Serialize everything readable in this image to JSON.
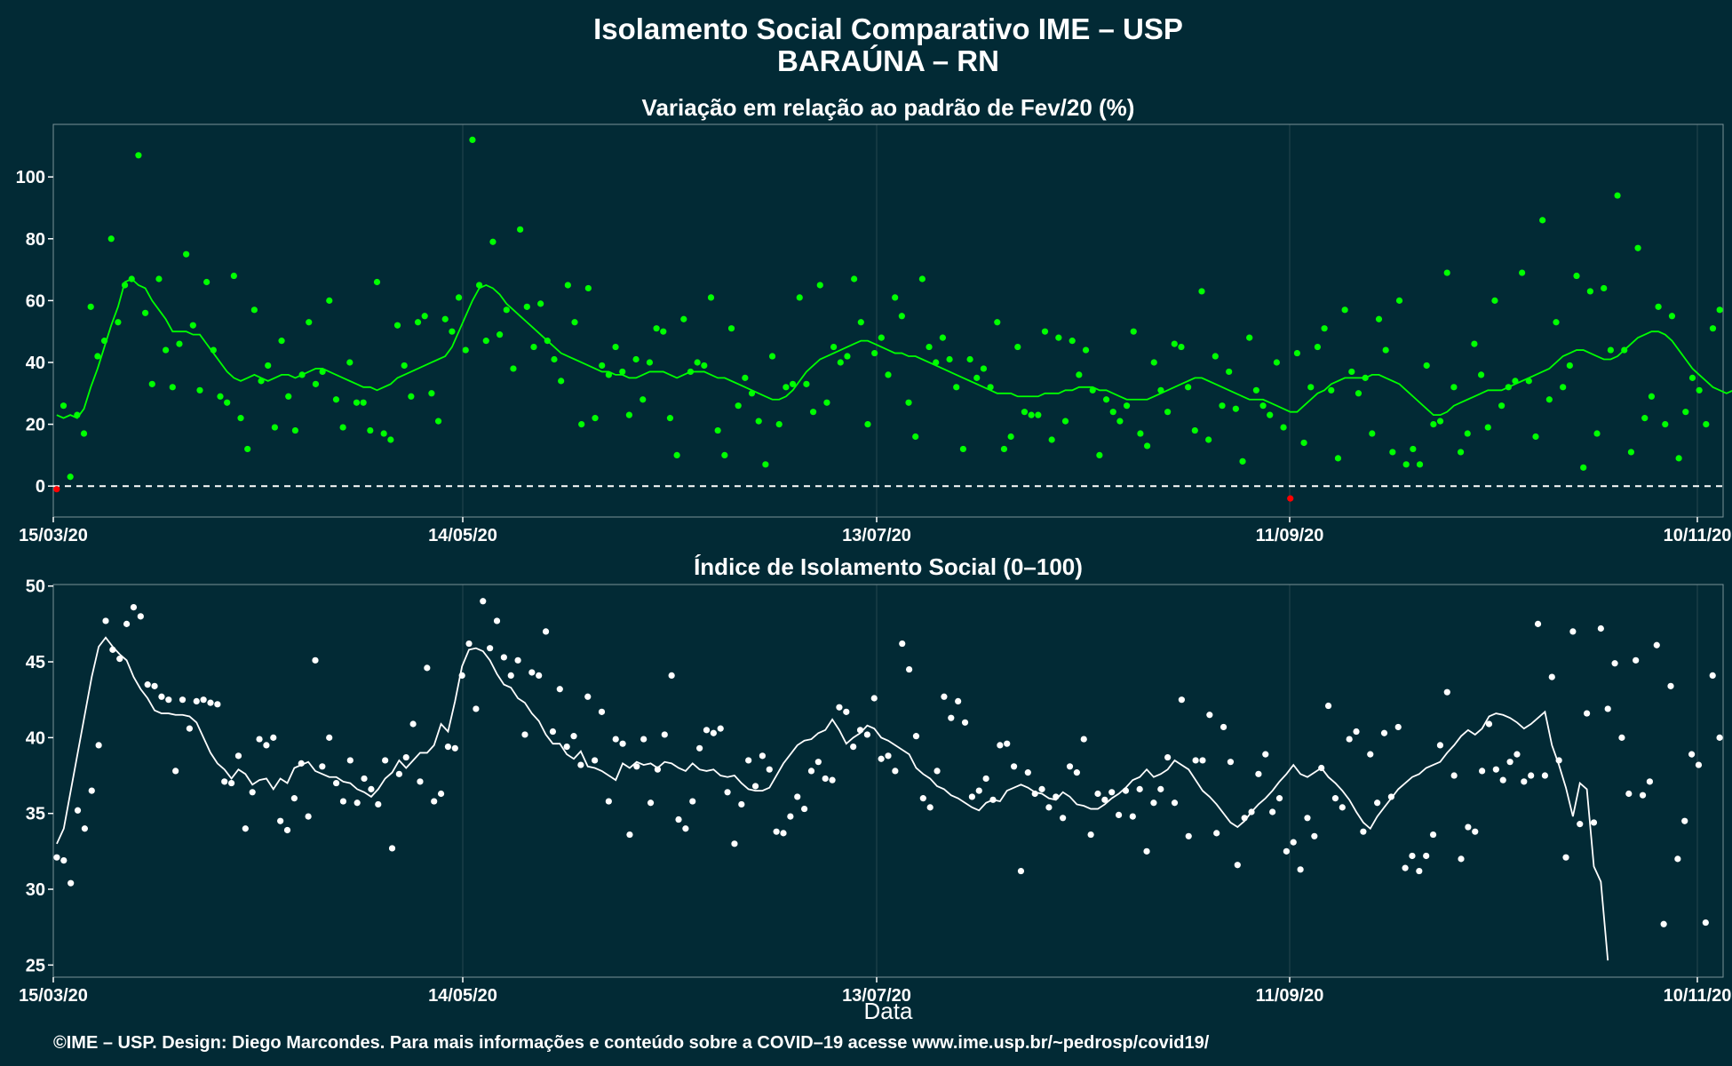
{
  "title_line1": "Isolamento Social Comparativo IME – USP",
  "title_line2": "BARAÚNA – RN",
  "xlabel": "Data",
  "footer": "©IME – USP. Design: Diego Marcondes. Para mais informações e conteúdo sobre a COVID–19 acesse www.ime.usp.br/~pedrosp/covid19/",
  "colors": {
    "background": "#022a35",
    "grid": "#26474f",
    "top_series": "#00ff00",
    "bottom_series": "#ffffff",
    "negative_points": "#ff0000",
    "zero_line": "#ffffff"
  },
  "chart_data": [
    {
      "type": "scatter",
      "title": "Variação em relação ao padrão de Fev/20 (%)",
      "x_ticks": [
        "15/03/20",
        "14/05/20",
        "13/07/20",
        "11/09/20",
        "10/11/20"
      ],
      "x_start": "15/03/20",
      "x_range": [
        "15/03/20",
        "16/11/20"
      ],
      "ylim": [
        -10,
        117
      ],
      "y_ticks": [
        0,
        20,
        40,
        60,
        80,
        100
      ],
      "reference_line": 0,
      "series": [
        {
          "style": "points",
          "values": [
            -1,
            26,
            3,
            23,
            17,
            58,
            42,
            47,
            80,
            53,
            65,
            67,
            107,
            56,
            33,
            67,
            44,
            32,
            46,
            75,
            52,
            31,
            66,
            44,
            29,
            27,
            68,
            22,
            12,
            57,
            34,
            39,
            19,
            47,
            29,
            18,
            36,
            53,
            33,
            37,
            60,
            28,
            19,
            40,
            27,
            27,
            18,
            66,
            17,
            15,
            52,
            39,
            29,
            53,
            55,
            30,
            21,
            54,
            50,
            61,
            44,
            112,
            65,
            47,
            79,
            49,
            57,
            38,
            83,
            58,
            45,
            59,
            47,
            41,
            34,
            65,
            53,
            20,
            64,
            22,
            39,
            36,
            45,
            37,
            23,
            41,
            28,
            40,
            51,
            50,
            22,
            10,
            54,
            37,
            40,
            39,
            61,
            18,
            10,
            51,
            26,
            35,
            30,
            21,
            7,
            42,
            20,
            32,
            33,
            61,
            33,
            24,
            65,
            27,
            45,
            40,
            42,
            67,
            53,
            20,
            43,
            48,
            36,
            61,
            55,
            27,
            16,
            67,
            45,
            40,
            48,
            41,
            32,
            12,
            41,
            35,
            38,
            32,
            53,
            12,
            16,
            45,
            24,
            23,
            23,
            50,
            15,
            48,
            21,
            47,
            36,
            44,
            31,
            10,
            28,
            24,
            21,
            26,
            50,
            17,
            13,
            40,
            31,
            24,
            46,
            45,
            32,
            18,
            63,
            15,
            42,
            26,
            37,
            25,
            8,
            48,
            31,
            26,
            23,
            40,
            19,
            -4,
            43,
            14,
            32,
            45,
            51,
            31,
            9,
            57,
            37,
            30,
            35,
            17,
            54,
            44,
            11,
            60,
            7,
            12,
            7,
            39,
            20,
            21,
            69,
            32,
            11,
            17,
            46,
            36,
            19,
            60,
            26,
            32,
            34,
            69,
            34,
            16,
            86,
            28,
            53,
            32,
            39,
            68,
            6,
            63,
            17,
            64,
            44,
            94,
            44,
            11,
            77,
            22,
            29,
            58,
            20,
            55,
            9,
            24,
            35,
            31,
            20,
            51,
            57
          ]
        },
        {
          "style": "line",
          "name": "",
          "values": [
            23,
            22,
            23,
            22,
            25,
            32,
            38,
            45,
            52,
            58,
            66,
            67,
            65,
            64,
            60,
            57,
            54,
            50,
            50,
            50,
            49,
            49,
            46,
            43,
            40,
            37,
            35,
            34,
            35,
            36,
            35,
            34,
            35,
            36,
            36,
            35,
            36,
            37,
            38,
            38,
            37,
            36,
            35,
            34,
            33,
            32,
            32,
            31,
            32,
            33,
            35,
            36,
            37,
            38,
            39,
            40,
            41,
            42,
            45,
            50,
            55,
            60,
            64,
            65,
            64,
            62,
            59,
            57,
            55,
            53,
            51,
            49,
            47,
            45,
            43,
            42,
            41,
            40,
            39,
            38,
            37,
            37,
            36,
            36,
            35,
            35,
            36,
            37,
            37,
            37,
            36,
            35,
            36,
            37,
            37,
            37,
            36,
            35,
            35,
            34,
            33,
            32,
            31,
            30,
            29,
            28,
            28,
            29,
            31,
            34,
            37,
            39,
            41,
            42,
            43,
            44,
            45,
            46,
            47,
            47,
            46,
            45,
            44,
            43,
            43,
            42,
            42,
            41,
            40,
            39,
            38,
            37,
            36,
            35,
            34,
            33,
            32,
            31,
            30,
            30,
            30,
            29,
            29,
            29,
            29,
            30,
            30,
            30,
            31,
            31,
            32,
            32,
            32,
            31,
            31,
            30,
            29,
            28,
            28,
            28,
            28,
            29,
            30,
            31,
            32,
            33,
            34,
            35,
            35,
            34,
            33,
            32,
            31,
            30,
            29,
            28,
            28,
            28,
            27,
            26,
            25,
            24,
            24,
            26,
            28,
            30,
            31,
            33,
            34,
            35,
            35,
            35,
            35,
            36,
            36,
            35,
            34,
            33,
            31,
            29,
            27,
            25,
            23,
            23,
            24,
            26,
            27,
            28,
            29,
            30,
            31,
            31,
            31,
            32,
            33,
            34,
            35,
            36,
            37,
            38,
            40,
            42,
            43,
            44,
            44,
            43,
            42,
            41,
            41,
            42,
            44,
            46,
            48,
            49,
            50,
            50,
            49,
            47,
            44,
            41,
            38,
            36,
            34,
            32,
            31,
            30,
            31,
            32,
            33
          ]
        }
      ],
      "negative_marker_indices": [
        0,
        181
      ]
    },
    {
      "type": "scatter",
      "title": "Índice de Isolamento Social (0–100)",
      "x_ticks": [
        "15/03/20",
        "14/05/20",
        "13/07/20",
        "11/09/20",
        "10/11/20"
      ],
      "x_range": [
        "15/03/20",
        "16/11/20"
      ],
      "ylim": [
        24.2,
        50.1
      ],
      "y_ticks": [
        25,
        30,
        35,
        40,
        45,
        50
      ],
      "series": [
        {
          "style": "points",
          "values": [
            32.1,
            31.9,
            30.4,
            35.2,
            34.0,
            36.5,
            39.5,
            47.7,
            45.8,
            45.2,
            47.5,
            48.6,
            48.0,
            43.5,
            43.4,
            42.7,
            42.5,
            37.8,
            42.5,
            40.6,
            42.4,
            42.5,
            42.3,
            42.2,
            37.1,
            37.0,
            38.8,
            34.0,
            36.4,
            39.9,
            39.5,
            40.0,
            34.5,
            33.9,
            36.0,
            38.3,
            34.8,
            45.1,
            38.1,
            40.0,
            37.0,
            35.8,
            38.5,
            35.7,
            37.3,
            36.6,
            35.6,
            38.5,
            32.7,
            37.6,
            38.7,
            40.9,
            37.1,
            44.6,
            35.8,
            36.3,
            39.4,
            39.3,
            44.1,
            46.2,
            41.9,
            49.0,
            45.9,
            47.7,
            45.3,
            44.1,
            45.1,
            40.2,
            44.3,
            44.1,
            47.0,
            40.4,
            43.2,
            39.4,
            40.1,
            38.2,
            42.7,
            38.5,
            41.7,
            35.8,
            39.9,
            39.6,
            33.6,
            38.1,
            39.9,
            35.7,
            37.9,
            40.2,
            44.1,
            34.6,
            34.0,
            35.8,
            39.3,
            40.5,
            40.3,
            40.6,
            36.4,
            33.0,
            35.6,
            38.5,
            36.8,
            38.8,
            37.9,
            33.8,
            33.7,
            34.8,
            36.1,
            35.3,
            37.8,
            38.4,
            37.3,
            37.2,
            42.0,
            41.7,
            39.4,
            40.5,
            40.2,
            42.6,
            38.6,
            38.8,
            37.8,
            46.2,
            44.5,
            40.1,
            36.0,
            35.4,
            37.8,
            42.7,
            41.3,
            42.4,
            41.0,
            36.1,
            36.5,
            37.3,
            35.9,
            39.5,
            39.6,
            38.1,
            31.2,
            37.7,
            36.3,
            36.6,
            35.4,
            36.1,
            34.7,
            38.1,
            37.7,
            39.9,
            33.6,
            36.3,
            35.9,
            36.4,
            34.9,
            36.5,
            34.8,
            36.6,
            32.5,
            35.7,
            36.6,
            38.7,
            35.7,
            42.5,
            33.5,
            38.5,
            38.5,
            41.5,
            33.7,
            40.7,
            38.4,
            31.6,
            34.7,
            35.1,
            37.6,
            38.9,
            35.1,
            36.0,
            32.5,
            33.1,
            31.3,
            34.7,
            33.5,
            38.0,
            42.1,
            36.0,
            35.4,
            39.9,
            40.4,
            33.8,
            38.9,
            35.7,
            40.3,
            36.1,
            40.7,
            31.4,
            32.2,
            31.2,
            32.2,
            33.6,
            39.5,
            43.0,
            37.5,
            32.0,
            34.1,
            33.8,
            37.8,
            40.9,
            37.9,
            37.2,
            38.4,
            38.9,
            37.1,
            37.5,
            47.5,
            37.5,
            44.0,
            38.5,
            32.1,
            47.0,
            34.3,
            41.6,
            34.4,
            47.2,
            41.9,
            44.9,
            40.0,
            36.3,
            45.1,
            36.2,
            37.1,
            46.1,
            27.7,
            43.4,
            32.0,
            34.5,
            38.9,
            38.2,
            27.8,
            44.1,
            40.0
          ]
        },
        {
          "style": "line",
          "name": "",
          "values": [
            33.0,
            34.0,
            36.5,
            39.0,
            41.5,
            44.0,
            46.0,
            46.6,
            46.0,
            45.5,
            45.1,
            44.0,
            43.2,
            42.6,
            41.8,
            41.6,
            41.6,
            41.5,
            41.5,
            41.4,
            41.0,
            40.0,
            39.0,
            38.3,
            37.9,
            37.3,
            37.9,
            37.6,
            36.9,
            37.2,
            37.3,
            36.6,
            37.3,
            37.0,
            38.0,
            38.2,
            38.4,
            37.8,
            37.6,
            37.4,
            37.4,
            37.1,
            37.0,
            36.6,
            36.4,
            36.1,
            36.6,
            37.3,
            37.7,
            38.5,
            38.0,
            38.5,
            39.0,
            39.0,
            39.5,
            40.9,
            40.4,
            42.4,
            44.7,
            45.8,
            45.9,
            45.7,
            45.1,
            44.2,
            43.5,
            43.3,
            42.6,
            42.3,
            41.6,
            41.1,
            40.2,
            39.6,
            39.6,
            38.9,
            38.6,
            39.1,
            38.1,
            38.0,
            37.8,
            37.5,
            37.2,
            38.3,
            38.0,
            38.4,
            38.2,
            38.3,
            38.0,
            38.4,
            38.3,
            38.0,
            37.8,
            38.3,
            37.9,
            37.8,
            37.9,
            37.5,
            37.4,
            37.5,
            37.0,
            36.6,
            36.5,
            36.5,
            36.7,
            37.5,
            38.3,
            38.9,
            39.5,
            39.8,
            39.9,
            40.3,
            40.5,
            41.2,
            40.5,
            39.6,
            40.0,
            40.3,
            40.8,
            40.6,
            40.0,
            39.8,
            39.5,
            39.2,
            38.9,
            38.0,
            37.6,
            37.3,
            36.8,
            36.6,
            36.2,
            36.0,
            35.7,
            35.4,
            35.2,
            35.7,
            35.9,
            35.8,
            36.5,
            36.7,
            36.9,
            36.7,
            36.4,
            36.3,
            36.0,
            35.9,
            36.4,
            36.1,
            35.6,
            35.5,
            35.3,
            35.3,
            35.6,
            36.0,
            36.3,
            36.7,
            37.2,
            37.4,
            37.9,
            37.4,
            37.6,
            37.9,
            38.5,
            38.2,
            37.9,
            37.2,
            36.5,
            36.1,
            35.6,
            35.0,
            34.4,
            34.1,
            34.5,
            35.1,
            35.6,
            36.0,
            36.5,
            37.1,
            37.6,
            38.2,
            37.6,
            37.4,
            37.7,
            38.0,
            37.4,
            37.0,
            36.5,
            35.9,
            35.1,
            34.4,
            34.0,
            34.8,
            35.4,
            36.0,
            36.6,
            37.0,
            37.4,
            37.6,
            38.0,
            38.2,
            38.4,
            39.0,
            39.5,
            40.1,
            40.5,
            40.2,
            40.6,
            41.4,
            41.6,
            41.5,
            41.3,
            41.0,
            40.6,
            40.9,
            41.3,
            41.7,
            39.5,
            38.2,
            36.7,
            34.8,
            37.0,
            36.6,
            31.5,
            30.5,
            25.3
          ]
        }
      ]
    }
  ]
}
